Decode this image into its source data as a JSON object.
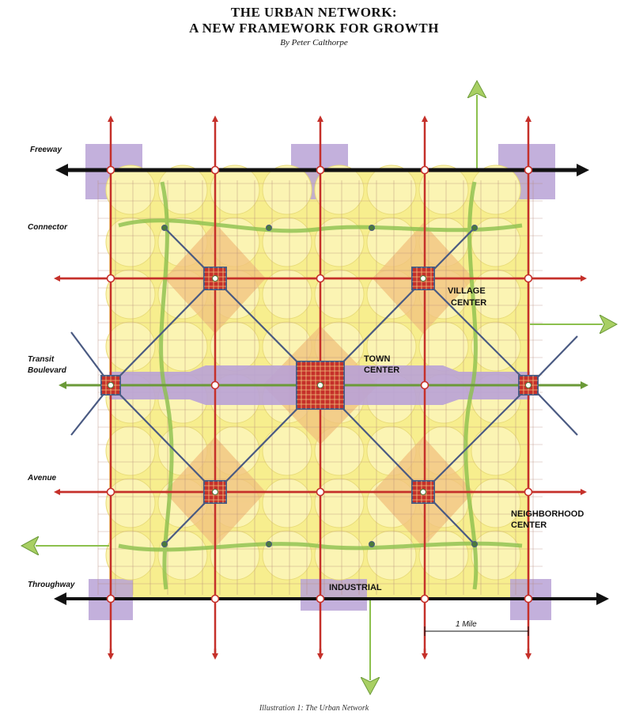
{
  "title_line1": "THE URBAN NETWORK:",
  "title_line2": "A NEW FRAMEWORK FOR GROWTH",
  "byline": "By Peter Calthorpe",
  "caption": "Illustration 1: The Urban Network",
  "left_labels": {
    "freeway": "Freeway",
    "connector": "Connector",
    "transit1": "Transit",
    "transit2": "Boulevard",
    "avenue": "Avenue",
    "throughway": "Throughway"
  },
  "map_labels": {
    "village1": "VILLAGE",
    "village2": "CENTER",
    "town1": "TOWN",
    "town2": "CENTER",
    "neigh1": "NEIGHBORHOOD",
    "neigh2": "CENTER",
    "industrial": "INDUSTRIAL",
    "scale": "1 Mile"
  },
  "colors": {
    "fill": "#f7ee8e",
    "circle": "#fbf4b3",
    "arterial": "#c5302a",
    "highway": "#111111",
    "transit": "#6b9a38",
    "purple": "#b9a2d6",
    "orange": "#f1c27d",
    "diagonal": "#4a5a82"
  }
}
